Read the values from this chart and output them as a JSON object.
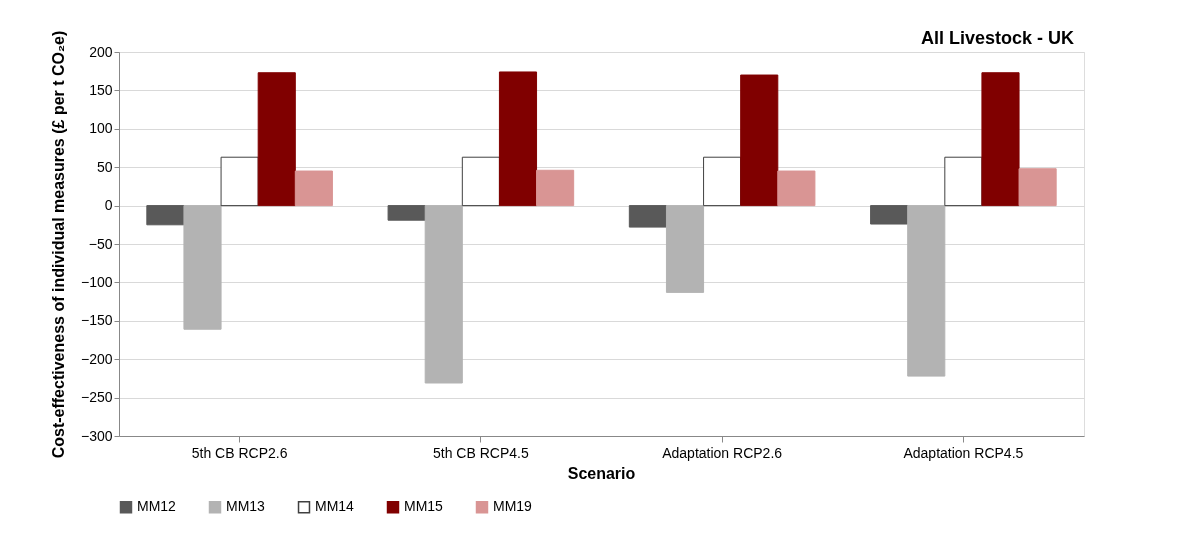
{
  "chart_data": {
    "type": "bar",
    "title": "All Livestock - UK",
    "xlabel": "Scenario",
    "ylabel": "Cost-effectiveness of individual measures (£ per t CO₂e)",
    "categories": [
      "5th CB RCP2.6",
      "5th CB RCP4.5",
      "Adaptation RCP2.6",
      "Adaptation RCP4.5"
    ],
    "series": [
      {
        "name": "MM12",
        "color": "#595959",
        "values": [
          -25,
          -19,
          -28,
          -24
        ]
      },
      {
        "name": "MM13",
        "color": "#b3b3b3",
        "values": [
          -161,
          -231,
          -113,
          -222
        ]
      },
      {
        "name": "MM14",
        "color": "#ffffff",
        "values": [
          63,
          63,
          63,
          63
        ]
      },
      {
        "name": "MM15",
        "color": "#800000",
        "values": [
          173,
          174,
          170,
          173
        ]
      },
      {
        "name": "MM19",
        "color": "#d99594",
        "values": [
          45,
          46,
          45,
          48
        ]
      }
    ],
    "ylim": [
      -300,
      200
    ],
    "yticks": [
      -300,
      -250,
      -200,
      -150,
      -100,
      -50,
      0,
      50,
      100,
      150,
      200
    ],
    "grid": "y",
    "legend": "bottom"
  }
}
